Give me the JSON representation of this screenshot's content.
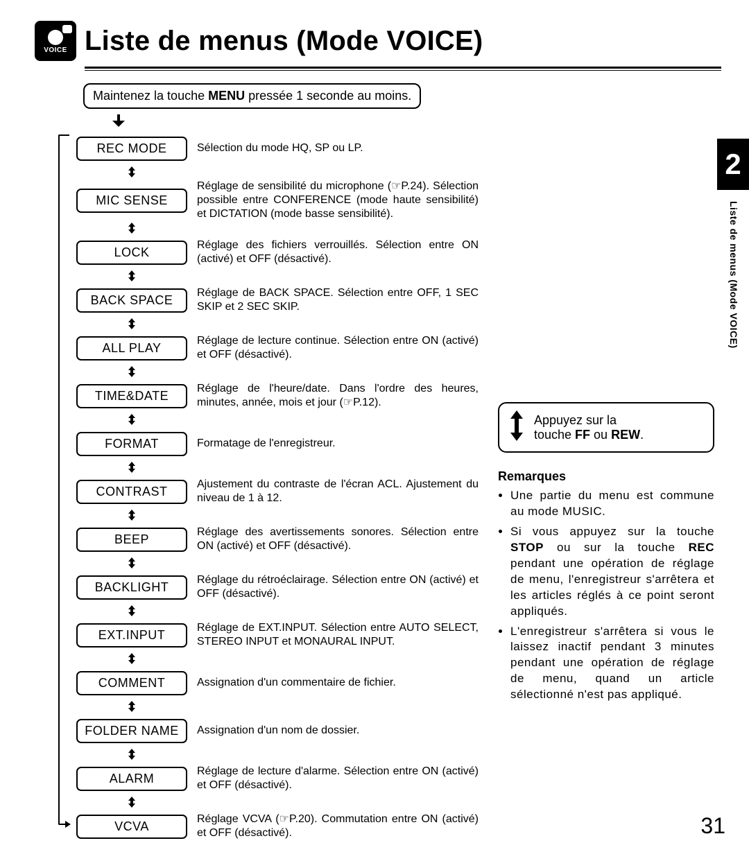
{
  "header": {
    "icon_label": "VOICE",
    "title": "Liste de menus (Mode VOICE)"
  },
  "instruction": {
    "pre": "Maintenez la touche ",
    "bold": "MENU",
    "post": " pressée 1 seconde au moins."
  },
  "menu": [
    {
      "label": "REC MODE",
      "desc": "Sélection du mode HQ, SP ou LP."
    },
    {
      "label": "MIC SENSE",
      "desc": "Réglage de sensibilité du microphone (☞P.24). Sélection possible entre CONFERENCE (mode haute sensibilité) et DICTATION (mode basse sensibilité)."
    },
    {
      "label": "LOCK",
      "desc": "Réglage des fichiers verrouillés. Sélection entre ON (activé) et OFF (désactivé)."
    },
    {
      "label": "BACK SPACE",
      "desc": "Réglage de BACK SPACE. Sélection entre OFF, 1 SEC SKIP et 2 SEC SKIP."
    },
    {
      "label": "ALL PLAY",
      "desc": "Réglage de lecture continue. Sélection entre ON (activé) et OFF (désactivé)."
    },
    {
      "label": "TIME&DATE",
      "desc": "Réglage de l'heure/date. Dans l'ordre des heures, minutes, année, mois et jour (☞P.12)."
    },
    {
      "label": "FORMAT",
      "desc": "Formatage de l'enregistreur."
    },
    {
      "label": "CONTRAST",
      "desc": "Ajustement du contraste de l'écran ACL. Ajustement du niveau de 1 à 12."
    },
    {
      "label": "BEEP",
      "desc": "Réglage des avertissements sonores. Sélection entre ON (activé) et OFF (désactivé)."
    },
    {
      "label": "BACKLIGHT",
      "desc": "Réglage du rétroéclairage. Sélection entre ON (activé) et OFF (désactivé)."
    },
    {
      "label": "EXT.INPUT",
      "desc": "Réglage de EXT.INPUT. Sélection entre AUTO SELECT, STEREO INPUT et MONAURAL INPUT."
    },
    {
      "label": "COMMENT",
      "desc": "Assignation d'un commentaire de fichier."
    },
    {
      "label": "FOLDER NAME",
      "desc": "Assignation d'un nom de dossier."
    },
    {
      "label": "ALARM",
      "desc": "Réglage de lecture d'alarme. Sélection entre ON (activé) et OFF (désactivé)."
    },
    {
      "label": "VCVA",
      "desc": "Réglage VCVA (☞P.20). Commutation entre ON (activé) et OFF (désactivé)."
    }
  ],
  "ffrew": {
    "line1": "Appuyez sur la",
    "line2_pre": "touche ",
    "line2_b1": "FF",
    "line2_mid": " ou ",
    "line2_b2": "REW",
    "line2_post": "."
  },
  "remarques": {
    "title": "Remarques",
    "items": [
      "Une partie du menu est commune au mode MUSIC.",
      "Si vous appuyez sur la touche <b>STOP</b> ou sur la touche <b>REC</b> pendant une opération de réglage de menu, l'enregistreur s'arrêtera et les articles réglés à ce point seront appliqués.",
      "L'enregistreur s'arrêtera si vous le laissez inactif pendant 3 minutes pendant une opération de réglage de menu, quand un article sélectionné n'est pas appliqué."
    ]
  },
  "side": {
    "number": "2",
    "label": "Liste de menus (Mode VOICE)"
  },
  "page_number": "31"
}
